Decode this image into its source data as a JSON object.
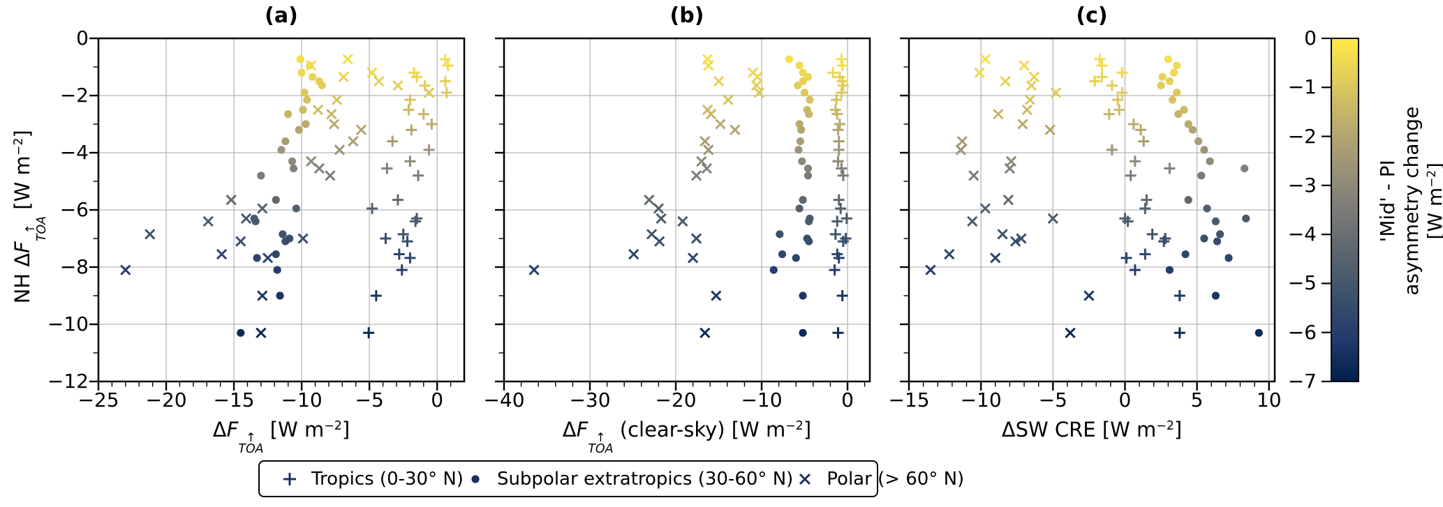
{
  "figure": {
    "background": "#ffffff"
  },
  "chart_data": {
    "type": "scatter",
    "grid": true,
    "panels": [
      {
        "id": "a",
        "title": "(a)",
        "xlabel": "ΔF↑TOA [W m⁻²]",
        "xlabel_parts": [
          {
            "s": "t",
            "t": "Δ"
          },
          {
            "s": "i",
            "t": "F"
          },
          {
            "s": "stack",
            "top": "↑",
            "bottom": "TOA"
          },
          {
            "s": "t",
            "t": " [W m"
          },
          {
            "s": "sup",
            "t": "−2"
          },
          {
            "s": "t",
            "t": "]"
          }
        ],
        "xlim": [
          -25,
          2
        ],
        "xticks": [
          -25,
          -20,
          -15,
          -10,
          -5,
          0
        ],
        "minor_step": 1
      },
      {
        "id": "b",
        "title": "(b)",
        "xlabel": "ΔF↑TOA (clear-sky) [W m⁻²]",
        "xlabel_parts": [
          {
            "s": "t",
            "t": "Δ"
          },
          {
            "s": "i",
            "t": "F"
          },
          {
            "s": "stack",
            "top": "↑",
            "bottom": "TOA"
          },
          {
            "s": "t",
            "t": " (clear-sky) [W m"
          },
          {
            "s": "sup",
            "t": "−2"
          },
          {
            "s": "t",
            "t": "]"
          }
        ],
        "xlim": [
          -40,
          2.6
        ],
        "xticks": [
          -40,
          -30,
          -20,
          -10,
          0
        ],
        "minor_step": 2
      },
      {
        "id": "c",
        "title": "(c)",
        "xlabel": "ΔSW CRE [W m⁻²]",
        "xlabel_parts": [
          {
            "s": "t",
            "t": "ΔSW CRE [W m"
          },
          {
            "s": "sup",
            "t": "−2"
          },
          {
            "s": "t",
            "t": "]"
          }
        ],
        "xlim": [
          -15,
          10.4
        ],
        "xticks": [
          -15,
          -10,
          -5,
          0,
          5,
          10
        ],
        "minor_step": 1
      }
    ],
    "shared_y": {
      "label": "NH ΔF↑TOA [W m⁻²]",
      "label_parts": [
        {
          "s": "t",
          "t": "NH Δ"
        },
        {
          "s": "i",
          "t": "F"
        },
        {
          "s": "stack",
          "top": "↑",
          "bottom": "TOA"
        },
        {
          "s": "t",
          "t": " [W m"
        },
        {
          "s": "sup",
          "t": "−2"
        },
        {
          "s": "t",
          "t": "]"
        }
      ],
      "ylim": [
        -12,
        0
      ],
      "yticks": [
        0,
        -2,
        -4,
        -6,
        -8,
        -10,
        -12
      ],
      "minor_step": 1
    },
    "color_variable": {
      "label": "'Mid' - PI asymmetry change [W m⁻²]",
      "title_lines": [
        [
          {
            "s": "t",
            "t": "'Mid' - PI"
          }
        ],
        [
          {
            "s": "t",
            "t": "asymmetry change"
          }
        ],
        [
          {
            "s": "t",
            "t": "[W m"
          },
          {
            "s": "sup",
            "t": "−2"
          },
          {
            "s": "t",
            "t": "]"
          }
        ]
      ],
      "lim": [
        -7,
        0
      ],
      "ticks": [
        0,
        -1,
        -2,
        -3,
        -4,
        -5,
        -6,
        -7
      ],
      "colormap": "cividis",
      "stops": [
        [
          0,
          "#00204C"
        ],
        [
          0.125,
          "#233A6C"
        ],
        [
          0.25,
          "#3B526B"
        ],
        [
          0.375,
          "#5C666E"
        ],
        [
          0.5,
          "#7C7B78"
        ],
        [
          0.625,
          "#9C9377"
        ],
        [
          0.75,
          "#BBAD6C"
        ],
        [
          0.875,
          "#DFCA5A"
        ],
        [
          1,
          "#FFEA46"
        ]
      ]
    },
    "legend_entries": [
      {
        "marker": "plus",
        "label": "Tropics (0-30° N)"
      },
      {
        "marker": "circle",
        "label": "Subpolar extratropics (30-60° N)"
      },
      {
        "marker": "x",
        "label": "Polar (> 60° N)"
      }
    ],
    "legend_marker_color": "#1B3060",
    "series_markers": {
      "tropics": "plus",
      "subpolar_extratropics": "circle",
      "polar": "x"
    },
    "models": [
      {
        "y": -0.73,
        "c": -0.3,
        "xa": [
          0.6,
          -10.1,
          -6.6
        ],
        "xb": [
          -0.7,
          -6.8,
          -16.3
        ],
        "xc": [
          -1.75,
          3.0,
          -9.7
        ]
      },
      {
        "y": -0.95,
        "c": -0.4,
        "xa": [
          0.8,
          -9.4,
          -9.3
        ],
        "xb": [
          -0.6,
          -5.6,
          -16.2
        ],
        "xc": [
          -1.6,
          3.6,
          -7.0
        ]
      },
      {
        "y": -1.2,
        "c": -0.5,
        "xa": [
          -1.7,
          -10.0,
          -4.8
        ],
        "xb": [
          -1.7,
          -5.2,
          -11.0
        ],
        "xc": [
          -0.2,
          3.4,
          -10.1
        ]
      },
      {
        "y": -1.35,
        "c": -0.6,
        "xa": [
          -1.5,
          -9.2,
          -6.9
        ],
        "xb": [
          -0.9,
          -4.6,
          -10.5
        ],
        "xc": [
          -1.6,
          2.6,
          -6.3
        ]
      },
      {
        "y": -1.5,
        "c": -0.68,
        "xa": [
          0.6,
          -8.7,
          -4.3
        ],
        "xb": [
          -0.6,
          -5.2,
          -15.0
        ],
        "xc": [
          -2.1,
          3.1,
          -8.3
        ]
      },
      {
        "y": -1.65,
        "c": -0.78,
        "xa": [
          -0.9,
          -8.5,
          -2.9
        ],
        "xb": [
          -0.5,
          -5.8,
          -10.6
        ],
        "xc": [
          -0.9,
          2.5,
          -6.5
        ]
      },
      {
        "y": -1.9,
        "c": -0.9,
        "xa": [
          0.7,
          -9.8,
          -0.6
        ],
        "xb": [
          -0.7,
          -5.0,
          -10.3
        ],
        "xc": [
          -0.2,
          3.6,
          -4.8
        ]
      },
      {
        "y": -2.15,
        "c": -1.1,
        "xa": [
          -2.0,
          -9.6,
          -7.4
        ],
        "xb": [
          -1.3,
          -4.4,
          -13.9
        ],
        "xc": [
          -0.5,
          3.3,
          -6.6
        ]
      },
      {
        "y": -2.5,
        "c": -1.3,
        "xa": [
          -2.1,
          -9.9,
          -8.8
        ],
        "xb": [
          -1.4,
          -4.7,
          -16.3
        ],
        "xc": [
          -0.4,
          4.1,
          -6.8
        ]
      },
      {
        "y": -2.65,
        "c": -1.5,
        "xa": [
          -1.0,
          -11.0,
          -7.8
        ],
        "xb": [
          -1.2,
          -4.5,
          -15.9
        ],
        "xc": [
          -1.1,
          3.7,
          -8.8
        ]
      },
      {
        "y": -3.0,
        "c": -1.8,
        "xa": [
          -0.4,
          -9.7,
          -7.6
        ],
        "xb": [
          -0.9,
          -5.6,
          -14.8
        ],
        "xc": [
          0.6,
          4.4,
          -7.1
        ]
      },
      {
        "y": -3.2,
        "c": -2.0,
        "xa": [
          -1.9,
          -10.2,
          -5.6
        ],
        "xb": [
          -1.1,
          -5.4,
          -13.1
        ],
        "xc": [
          1.1,
          4.7,
          -5.2
        ]
      },
      {
        "y": -3.6,
        "c": -2.3,
        "xa": [
          -3.3,
          -11.2,
          -6.2
        ],
        "xb": [
          -1.0,
          -5.5,
          -16.6
        ],
        "xc": [
          1.3,
          5.1,
          -11.3
        ]
      },
      {
        "y": -3.9,
        "c": -2.6,
        "xa": [
          -0.6,
          -11.5,
          -7.2
        ],
        "xb": [
          -1.0,
          -5.7,
          -16.2
        ],
        "xc": [
          -0.9,
          5.5,
          -11.4
        ]
      },
      {
        "y": -4.3,
        "c": -3.0,
        "xa": [
          -2.0,
          -10.7,
          -9.3
        ],
        "xb": [
          -1.1,
          -5.3,
          -17.0
        ],
        "xc": [
          0.7,
          5.9,
          -7.9
        ]
      },
      {
        "y": -4.55,
        "c": -3.3,
        "xa": [
          -3.7,
          -10.6,
          -8.7
        ],
        "xb": [
          -0.7,
          -4.6,
          -16.4
        ],
        "xc": [
          3.1,
          8.3,
          -8.0
        ]
      },
      {
        "y": -4.8,
        "c": -3.5,
        "xa": [
          -1.4,
          -13.0,
          -7.9
        ],
        "xb": [
          -0.5,
          -4.6,
          -17.6
        ],
        "xc": [
          0.4,
          5.3,
          -10.5
        ]
      },
      {
        "y": -5.65,
        "c": -4.3,
        "xa": [
          -2.9,
          -11.9,
          -15.2
        ],
        "xb": [
          -1.0,
          -5.2,
          -23.1
        ],
        "xc": [
          1.5,
          4.4,
          -8.1
        ]
      },
      {
        "y": -5.95,
        "c": -4.6,
        "xa": [
          -4.8,
          -10.4,
          -12.9
        ],
        "xb": [
          -0.8,
          -5.6,
          -22.0
        ],
        "xc": [
          1.4,
          5.7,
          -9.7
        ]
      },
      {
        "y": -6.3,
        "c": -4.85,
        "xa": [
          -1.5,
          -13.5,
          -14.1
        ],
        "xb": [
          -0.1,
          -4.4,
          -21.7
        ],
        "xc": [
          0.0,
          8.4,
          -5.0
        ]
      },
      {
        "y": -6.4,
        "c": -4.9,
        "xa": [
          -1.6,
          -13.4,
          -16.9
        ],
        "xb": [
          -1.2,
          -4.5,
          -19.2
        ],
        "xc": [
          0.2,
          6.3,
          -10.6
        ]
      },
      {
        "y": -6.85,
        "c": -5.2,
        "xa": [
          -2.5,
          -11.4,
          -21.2
        ],
        "xb": [
          -1.4,
          -7.9,
          -22.8
        ],
        "xc": [
          1.9,
          6.6,
          -8.5
        ]
      },
      {
        "y": -7.0,
        "c": -5.35,
        "xa": [
          -3.8,
          -10.9,
          -9.9
        ],
        "xb": [
          -0.2,
          -4.7,
          -17.6
        ],
        "xc": [
          2.8,
          5.5,
          -7.2
        ]
      },
      {
        "y": -7.1,
        "c": -5.4,
        "xa": [
          -2.2,
          -11.2,
          -14.5
        ],
        "xb": [
          -0.5,
          -4.5,
          -21.9
        ],
        "xc": [
          2.7,
          6.4,
          -7.6
        ]
      },
      {
        "y": -7.55,
        "c": -5.7,
        "xa": [
          -2.8,
          -11.9,
          -15.9
        ],
        "xb": [
          -1.2,
          -7.6,
          -24.9
        ],
        "xc": [
          1.4,
          4.2,
          -12.2
        ]
      },
      {
        "y": -7.68,
        "c": -5.8,
        "xa": [
          -2.0,
          -13.3,
          -12.5
        ],
        "xb": [
          -1.0,
          -6.0,
          -18.0
        ],
        "xc": [
          0.1,
          7.2,
          -9.0
        ]
      },
      {
        "y": -8.1,
        "c": -6.0,
        "xa": [
          -2.6,
          -11.8,
          -23.0
        ],
        "xb": [
          -1.5,
          -8.6,
          -36.5
        ],
        "xc": [
          0.7,
          3.1,
          -13.5
        ]
      },
      {
        "y": -9.0,
        "c": -6.3,
        "xa": [
          -4.5,
          -11.6,
          -12.9
        ],
        "xb": [
          -0.6,
          -5.2,
          -15.3
        ],
        "xc": [
          3.8,
          6.3,
          -2.5
        ]
      },
      {
        "y": -10.3,
        "c": -6.7,
        "xa": [
          -5.05,
          -14.5,
          -13.0
        ],
        "xb": [
          -1.1,
          -5.2,
          -16.6
        ],
        "xc": [
          3.8,
          9.3,
          -3.8
        ]
      }
    ]
  }
}
